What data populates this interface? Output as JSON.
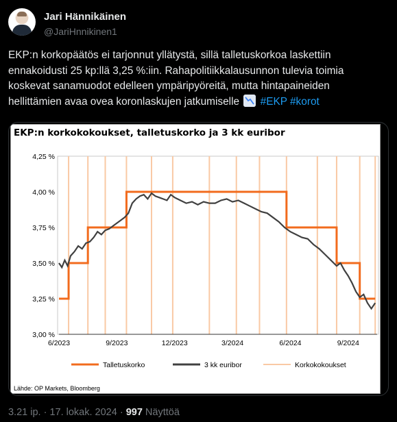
{
  "author": {
    "display_name": "Jari Hännikäinen",
    "handle": "@JariHnnikinen1"
  },
  "tweet": {
    "lines": [
      "EKP:n korkopäätös ei tarjonnut yllätystä, sillä talletuskorkoa laskettiin",
      "ennakoidusti 25 kp:llä 3,25 %:iin. Rahapolitiikkalausunnon tulevia toimia",
      "koskevat sanamuodot edelleen ympäripyöreitä, mutta hintapaineiden"
    ],
    "last_line_text": "hellittämien avaa ovea koronlaskujen jatkumiselle",
    "emoji_icon": "chart-decreasing-icon",
    "hashtags": [
      "#EKP",
      "#korot"
    ]
  },
  "chart_data": {
    "type": "line",
    "title": "EKP:n korkokokoukset, talletuskorko ja 3 kk euribor",
    "source": "Lähde: OP Markets, Bloomberg",
    "x_ticks": [
      "6/2023",
      "9/2023",
      "12/2023",
      "3/2024",
      "6/2024",
      "9/2024"
    ],
    "x_tick_months": [
      0,
      3,
      6,
      9,
      12,
      15
    ],
    "xlim_months": [
      0,
      16.5
    ],
    "y_ticks": [
      "4,25 %",
      "4,00 %",
      "3,75 %",
      "3,50 %",
      "3,25 %",
      "3,00 %"
    ],
    "y_tick_values": [
      4.25,
      4.0,
      3.75,
      3.5,
      3.25,
      3.0
    ],
    "ylim": [
      3.0,
      4.25
    ],
    "legend": [
      "Talletuskorko",
      "3 kk euribor",
      "Korkokokoukset"
    ],
    "colors": {
      "talletuskorko": "#f26b1d",
      "euribor": "#404040",
      "korkokokoukset": "#f9c9a4"
    },
    "meeting_months": [
      0.5,
      1.5,
      2.4,
      3.5,
      4.8,
      5.9,
      7.8,
      9.2,
      10.4,
      11.8,
      13.4,
      14.4,
      15.6,
      16.4
    ],
    "deposit_rate": {
      "x_months": [
        0,
        0.5,
        0.5,
        1.5,
        1.5,
        3.5,
        3.5,
        11.8,
        11.8,
        14.4,
        14.4,
        15.6,
        15.6,
        16.4,
        16.4
      ],
      "values": [
        3.25,
        3.25,
        3.5,
        3.5,
        3.75,
        3.75,
        4.0,
        4.0,
        3.75,
        3.75,
        3.5,
        3.5,
        3.25,
        3.25,
        3.25
      ]
    },
    "euribor": {
      "x_months": [
        0,
        0.15,
        0.3,
        0.45,
        0.6,
        0.8,
        1.0,
        1.2,
        1.4,
        1.6,
        1.8,
        2.0,
        2.2,
        2.4,
        2.6,
        2.8,
        3.0,
        3.2,
        3.4,
        3.6,
        3.8,
        4.0,
        4.2,
        4.4,
        4.6,
        4.8,
        5.0,
        5.2,
        5.4,
        5.6,
        5.8,
        6.0,
        6.3,
        6.6,
        6.9,
        7.2,
        7.5,
        7.8,
        8.1,
        8.4,
        8.7,
        9.0,
        9.3,
        9.6,
        9.9,
        10.2,
        10.5,
        10.8,
        11.1,
        11.4,
        11.7,
        12.0,
        12.3,
        12.6,
        12.9,
        13.2,
        13.5,
        13.8,
        14.1,
        14.4,
        14.6,
        14.8,
        15.0,
        15.2,
        15.4,
        15.6,
        15.8,
        16.0,
        16.2,
        16.4
      ],
      "values": [
        3.5,
        3.47,
        3.52,
        3.48,
        3.55,
        3.58,
        3.62,
        3.6,
        3.64,
        3.65,
        3.68,
        3.72,
        3.7,
        3.73,
        3.74,
        3.76,
        3.78,
        3.8,
        3.82,
        3.85,
        3.92,
        3.95,
        3.97,
        3.98,
        3.95,
        3.99,
        3.97,
        3.96,
        3.95,
        3.94,
        3.98,
        3.96,
        3.94,
        3.92,
        3.93,
        3.91,
        3.93,
        3.92,
        3.92,
        3.94,
        3.95,
        3.93,
        3.94,
        3.92,
        3.9,
        3.88,
        3.86,
        3.85,
        3.82,
        3.79,
        3.75,
        3.72,
        3.7,
        3.68,
        3.67,
        3.63,
        3.6,
        3.56,
        3.52,
        3.48,
        3.5,
        3.45,
        3.41,
        3.36,
        3.3,
        3.26,
        3.28,
        3.22,
        3.18,
        3.22
      ]
    }
  },
  "meta": {
    "timestamp": "3.21 ip. · 17. lokak. 2024 · ",
    "views_count": "997",
    "views_label": " Näyttöä"
  }
}
